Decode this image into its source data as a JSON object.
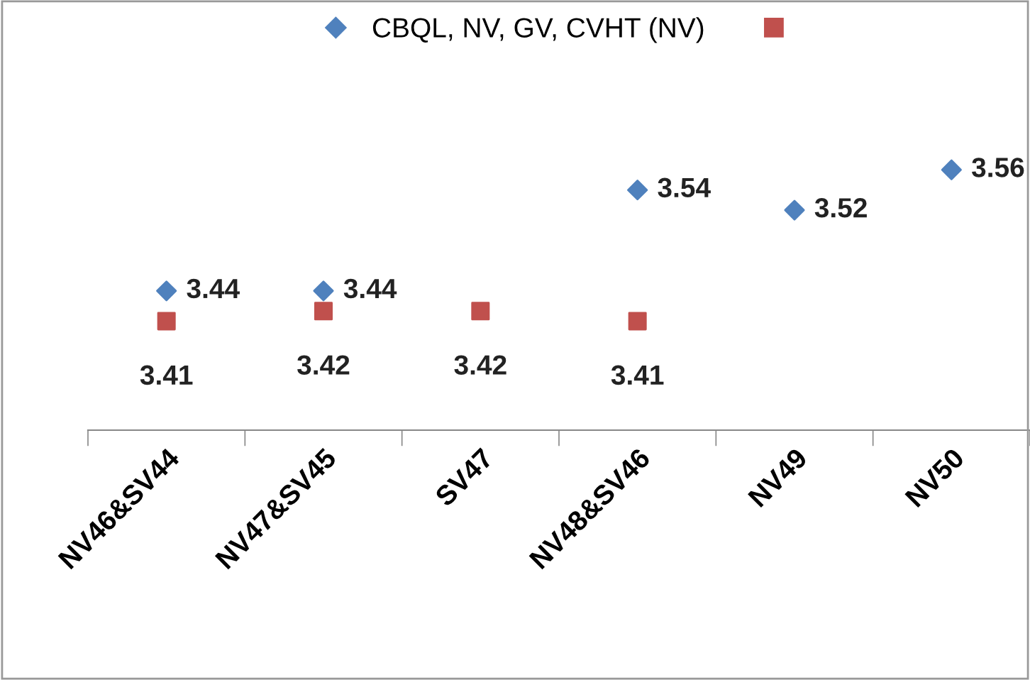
{
  "chart_data": {
    "type": "scatter",
    "categories": [
      "NV46&SV44",
      "NV47&SV45",
      "SV47",
      "NV48&SV46",
      "NV49",
      "NV50"
    ],
    "series": [
      {
        "name": "CBQL, NV, GV, CVHT (NV)",
        "color": "#4f81bd",
        "marker": "diamond",
        "values": [
          3.44,
          3.44,
          null,
          3.54,
          3.52,
          3.56
        ]
      },
      {
        "color": "#c0504d",
        "marker": "square",
        "values": [
          3.41,
          3.42,
          3.42,
          3.41,
          null,
          null
        ]
      }
    ],
    "tick_labels": "x",
    "data_labels": true,
    "grid": false,
    "legend": "top"
  }
}
